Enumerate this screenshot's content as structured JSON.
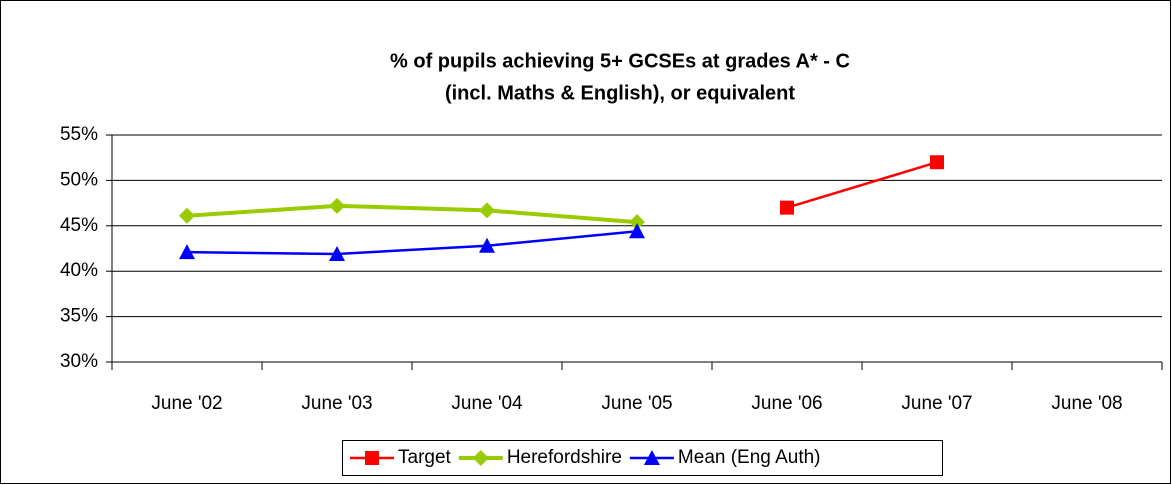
{
  "chart_data": {
    "type": "line",
    "title": [
      "% of pupils achieving 5+ GCSEs at grades A* - C",
      "(incl. Maths & English), or equivalent"
    ],
    "categories": [
      "June '02",
      "June '03",
      "June '04",
      "June '05",
      "June '06",
      "June '07",
      "June '08"
    ],
    "series": [
      {
        "name": "Target",
        "color": "#ff0000",
        "marker": "square",
        "values": [
          null,
          null,
          null,
          null,
          47,
          52,
          null
        ]
      },
      {
        "name": "Herefordshire",
        "color": "#99cc00",
        "marker": "diamond",
        "values": [
          46.1,
          47.2,
          46.7,
          45.4,
          null,
          null,
          null
        ]
      },
      {
        "name": "Mean (Eng Auth)",
        "color": "#0000ff",
        "marker": "triangle",
        "values": [
          42.1,
          41.9,
          42.8,
          44.4,
          null,
          null,
          null
        ]
      }
    ],
    "ylim": [
      30,
      55
    ],
    "yticks": [
      {
        "value": 30,
        "label": "30%"
      },
      {
        "value": 35,
        "label": "35%"
      },
      {
        "value": 40,
        "label": "40%"
      },
      {
        "value": 45,
        "label": "45%"
      },
      {
        "value": 50,
        "label": "50%"
      },
      {
        "value": 55,
        "label": "55%"
      }
    ],
    "grid": true,
    "legend": "bottom"
  }
}
